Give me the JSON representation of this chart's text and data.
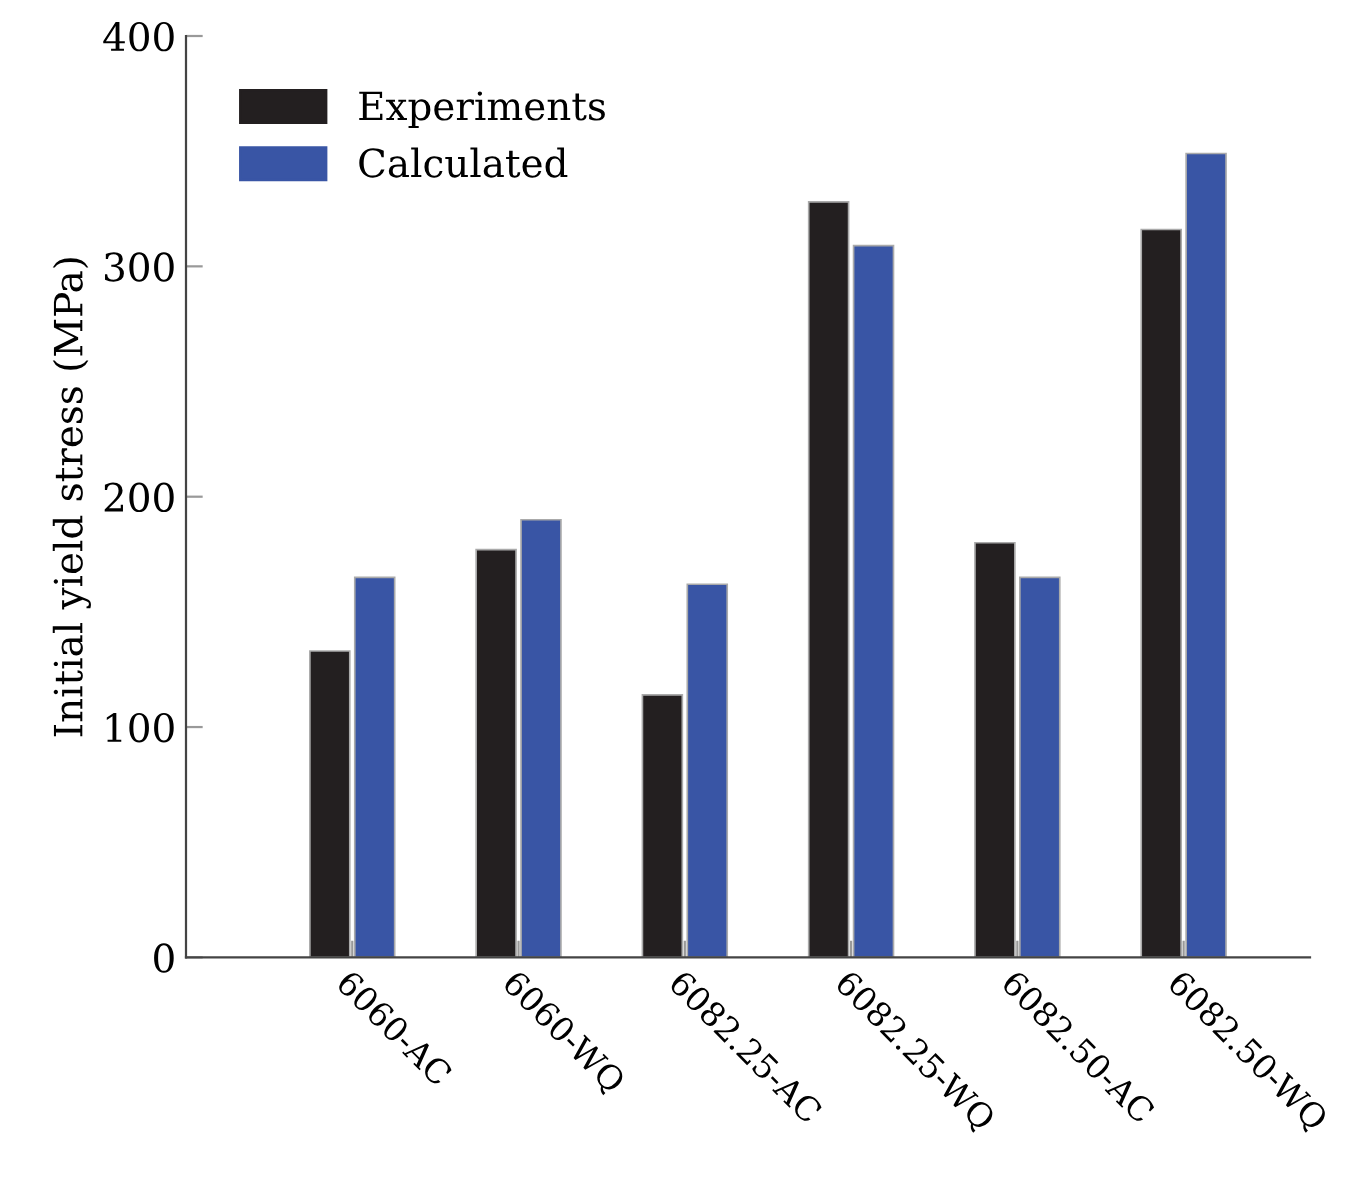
{
  "chart_data": {
    "type": "bar",
    "ylabel": "Initial yield stress (MPa)",
    "categories": [
      "6060-AC",
      "6060-WQ",
      "6082.25-AC",
      "6082.25-WQ",
      "6082.50-AC",
      "6082.50-WQ"
    ],
    "series": [
      {
        "name": "Experiments",
        "color": "#231f20",
        "values": [
          133,
          177,
          114,
          328,
          180,
          316
        ]
      },
      {
        "name": "Calculated",
        "color": "#3955a5",
        "values": [
          165,
          190,
          162,
          309,
          165,
          349
        ]
      }
    ],
    "ylim": [
      0,
      400
    ],
    "yticks": [
      0,
      100,
      200,
      300,
      400
    ],
    "grid": false,
    "legend": "top left"
  }
}
